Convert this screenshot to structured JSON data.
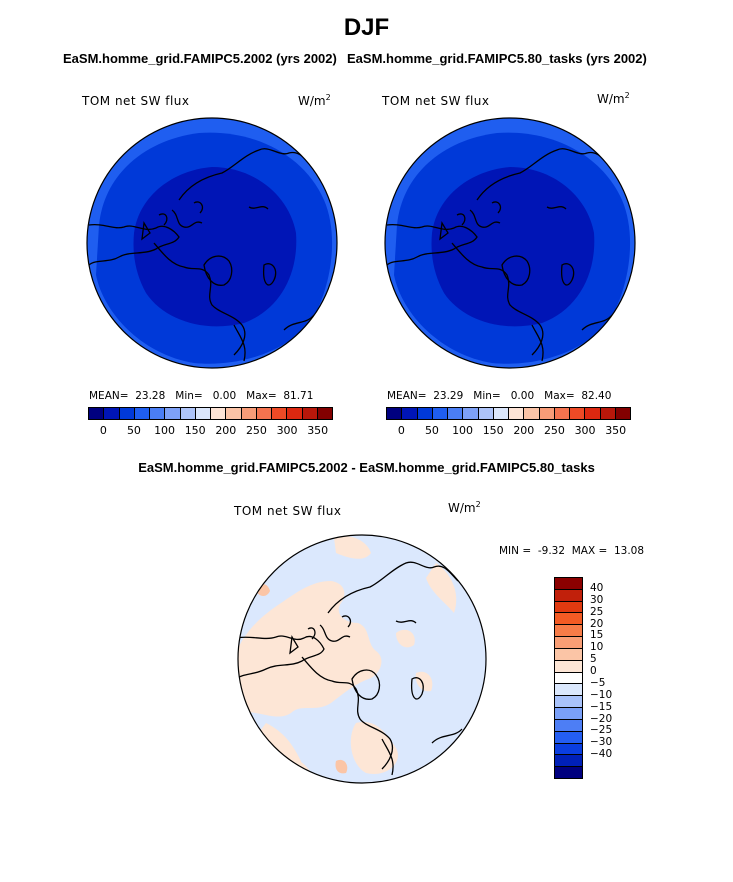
{
  "title": "DJF",
  "panels": [
    {
      "case_title": "EaSM.homme_grid.FAMIPC5.2002 (yrs 2002)",
      "variable": "TOM net SW flux",
      "units": "W/m",
      "units_exp": "2",
      "mean_label": "MEAN=",
      "mean": "23.28",
      "min_label": "Min=",
      "min": "0.00",
      "max_label": "Max=",
      "max": "81.71"
    },
    {
      "case_title": "EaSM.homme_grid.FAMIPC5.80_tasks (yrs 2002)",
      "variable": "TOM net SW flux",
      "units": "W/m",
      "units_exp": "2",
      "mean_label": "MEAN=",
      "mean": "23.29",
      "min_label": "Min=",
      "min": "0.00",
      "max_label": "Max=",
      "max": "82.40"
    }
  ],
  "colorbar_top": {
    "colors": [
      "#00007f",
      "#0015b6",
      "#0039d8",
      "#1f5ef0",
      "#4a7ef5",
      "#7ea1f7",
      "#aec4f9",
      "#dbe6fb",
      "#fde4d6",
      "#fbc3a6",
      "#f89c78",
      "#f5734f",
      "#ee4a26",
      "#dd2810",
      "#b8170a",
      "#820000"
    ],
    "ticks": [
      "0",
      "50",
      "100",
      "150",
      "200",
      "250",
      "300",
      "350"
    ]
  },
  "difference": {
    "title": "EaSM.homme_grid.FAMIPC5.2002 - EaSM.homme_grid.FAMIPC5.80_tasks",
    "variable": "TOM net SW flux",
    "units": "W/m",
    "units_exp": "2",
    "min_label": "MIN =",
    "min": "-9.32",
    "max_label": "MAX =",
    "max": "13.08",
    "colors": [
      "#8b0000",
      "#c1200b",
      "#e03a10",
      "#f35b24",
      "#f77c48",
      "#f99e75",
      "#fbc5a6",
      "#fde6d6",
      "#ffffff",
      "#dbe8fd",
      "#a9c3fb",
      "#7aa0f8",
      "#4d7ef5",
      "#245ef2",
      "#0a3ee0",
      "#0020b8",
      "#00007f"
    ],
    "ticks": [
      "40",
      "30",
      "25",
      "20",
      "15",
      "10",
      "5",
      "0",
      "−5",
      "−10",
      "−15",
      "−20",
      "−25",
      "−30",
      "−40"
    ]
  }
}
